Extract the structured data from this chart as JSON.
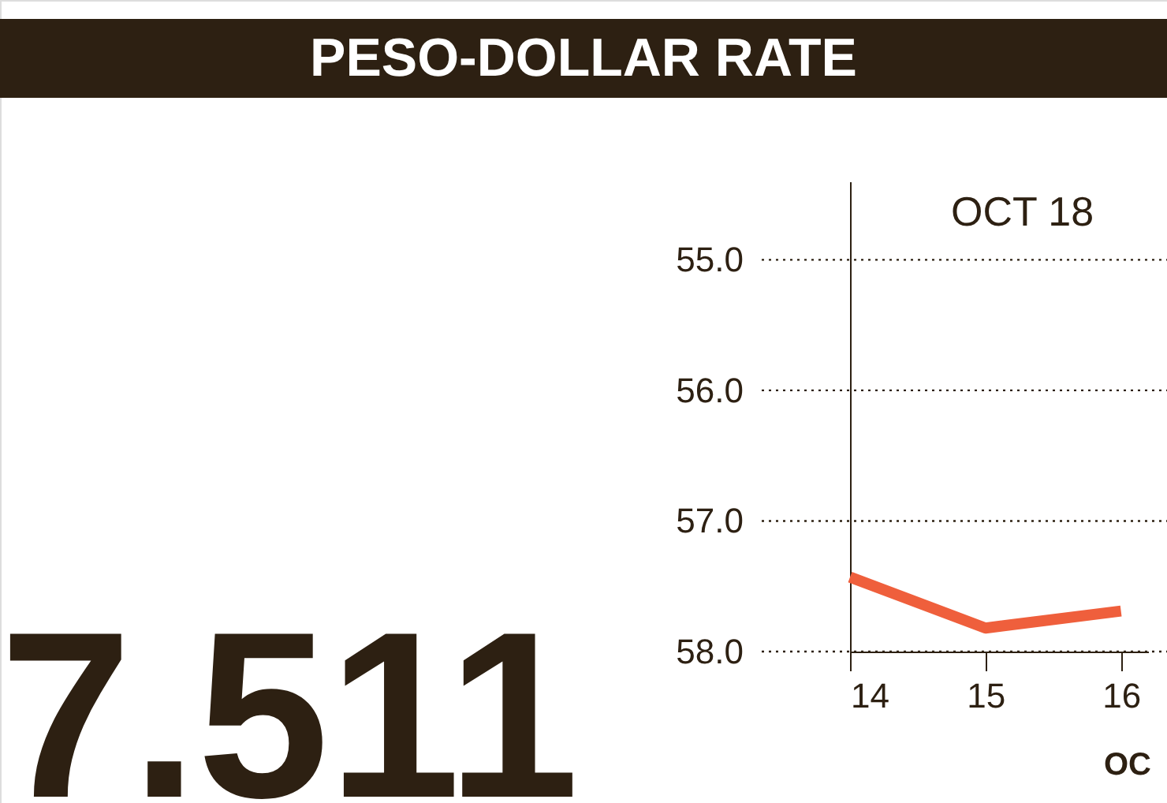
{
  "chart_data": {
    "type": "line",
    "title": "PESO-DOLLAR RATE",
    "subtitle": "OCT 18",
    "xlabel": "OC",
    "annotations": [
      "7.511"
    ],
    "x": [
      14,
      15,
      16
    ],
    "series": [
      {
        "color": "#ef5f3c",
        "values": [
          57.43,
          57.82,
          57.69
        ]
      }
    ],
    "xlim": [
      14,
      16.2
    ],
    "xticks": [
      14,
      15,
      16
    ],
    "ylim": [
      58.0,
      54.4
    ],
    "yticks": [
      {
        "value": 55,
        "label": "55.0"
      },
      {
        "value": 56,
        "label": "56.0"
      },
      {
        "value": 57,
        "label": "57.0"
      },
      {
        "value": 58,
        "label": "58.0"
      }
    ],
    "grid": "y",
    "line_style": "solid"
  }
}
